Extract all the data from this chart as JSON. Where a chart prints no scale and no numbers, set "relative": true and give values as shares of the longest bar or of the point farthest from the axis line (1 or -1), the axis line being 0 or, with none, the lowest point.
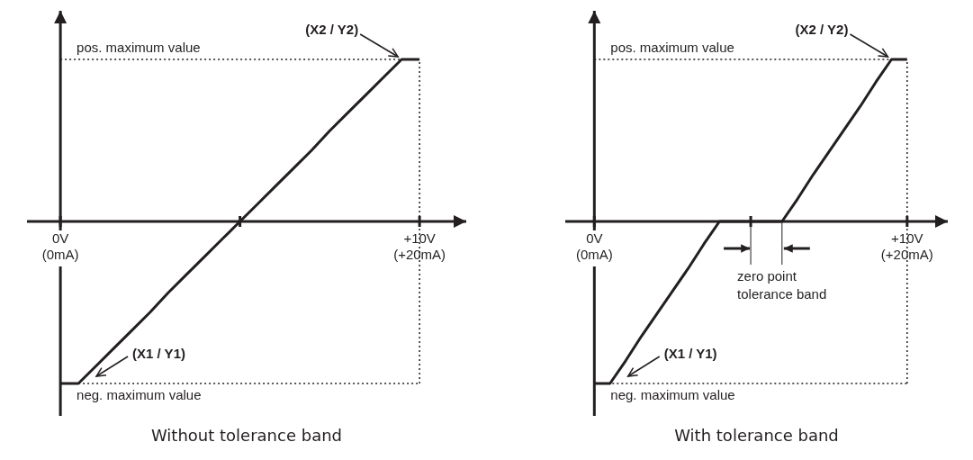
{
  "chart_data": [
    {
      "type": "line",
      "title": "Without tolerance band",
      "relative": true,
      "marker": "none",
      "line_style": "solid",
      "categories": [
        "0V\n(0mA)",
        null,
        null,
        null,
        null,
        null,
        null,
        null,
        null,
        null,
        null,
        null,
        null,
        null,
        null,
        null,
        null,
        null,
        null,
        null,
        "+10V\n(+20mA)"
      ],
      "series": [
        {
          "color": "#231f20",
          "values": [
            -1,
            -1,
            -0.89,
            -0.78,
            -0.67,
            -0.56,
            -0.44,
            -0.33,
            -0.22,
            -0.11,
            0,
            0.11,
            0.22,
            0.33,
            0.44,
            0.56,
            0.67,
            0.78,
            0.89,
            1,
            1
          ]
        }
      ],
      "ref_lines": [
        {
          "axis": "y",
          "value": 1,
          "label": "pos. maximum value",
          "color": "#231f20",
          "line_style": "dotted"
        },
        {
          "axis": "y",
          "value": -1,
          "label": "neg. maximum value",
          "color": "#231f20",
          "line_style": "dotted"
        },
        {
          "axis": "x",
          "value": "+10V\n(+20mA)",
          "color": "#231f20",
          "line_style": "dotted"
        }
      ],
      "annotations": [
        "(X1 / Y1)",
        "(X2 / Y2)"
      ]
    },
    {
      "type": "line",
      "title": "With tolerance band",
      "relative": true,
      "marker": "none",
      "line_style": "solid",
      "categories": [
        "0V\n(0mA)",
        null,
        null,
        null,
        null,
        null,
        null,
        null,
        null,
        null,
        null,
        null,
        null,
        null,
        null,
        null,
        null,
        null,
        null,
        null,
        "+10V\n(+20mA)"
      ],
      "series": [
        {
          "color": "#231f20",
          "values": [
            -1,
            -1,
            -0.86,
            -0.71,
            -0.57,
            -0.43,
            -0.29,
            -0.14,
            0,
            0,
            0,
            0,
            0,
            0.14,
            0.29,
            0.43,
            0.57,
            0.71,
            0.86,
            1,
            1
          ]
        }
      ],
      "ref_lines": [
        {
          "axis": "y",
          "value": 1,
          "label": "pos. maximum value",
          "color": "#231f20",
          "line_style": "dotted"
        },
        {
          "axis": "y",
          "value": -1,
          "label": "neg. maximum value",
          "color": "#231f20",
          "line_style": "dotted"
        },
        {
          "axis": "x",
          "value": "+10V\n(+20mA)",
          "color": "#231f20",
          "line_style": "dotted"
        }
      ],
      "annotations": [
        "(X1 / Y1)",
        "(X2 / Y2)",
        "zero point tolerance band"
      ]
    }
  ]
}
